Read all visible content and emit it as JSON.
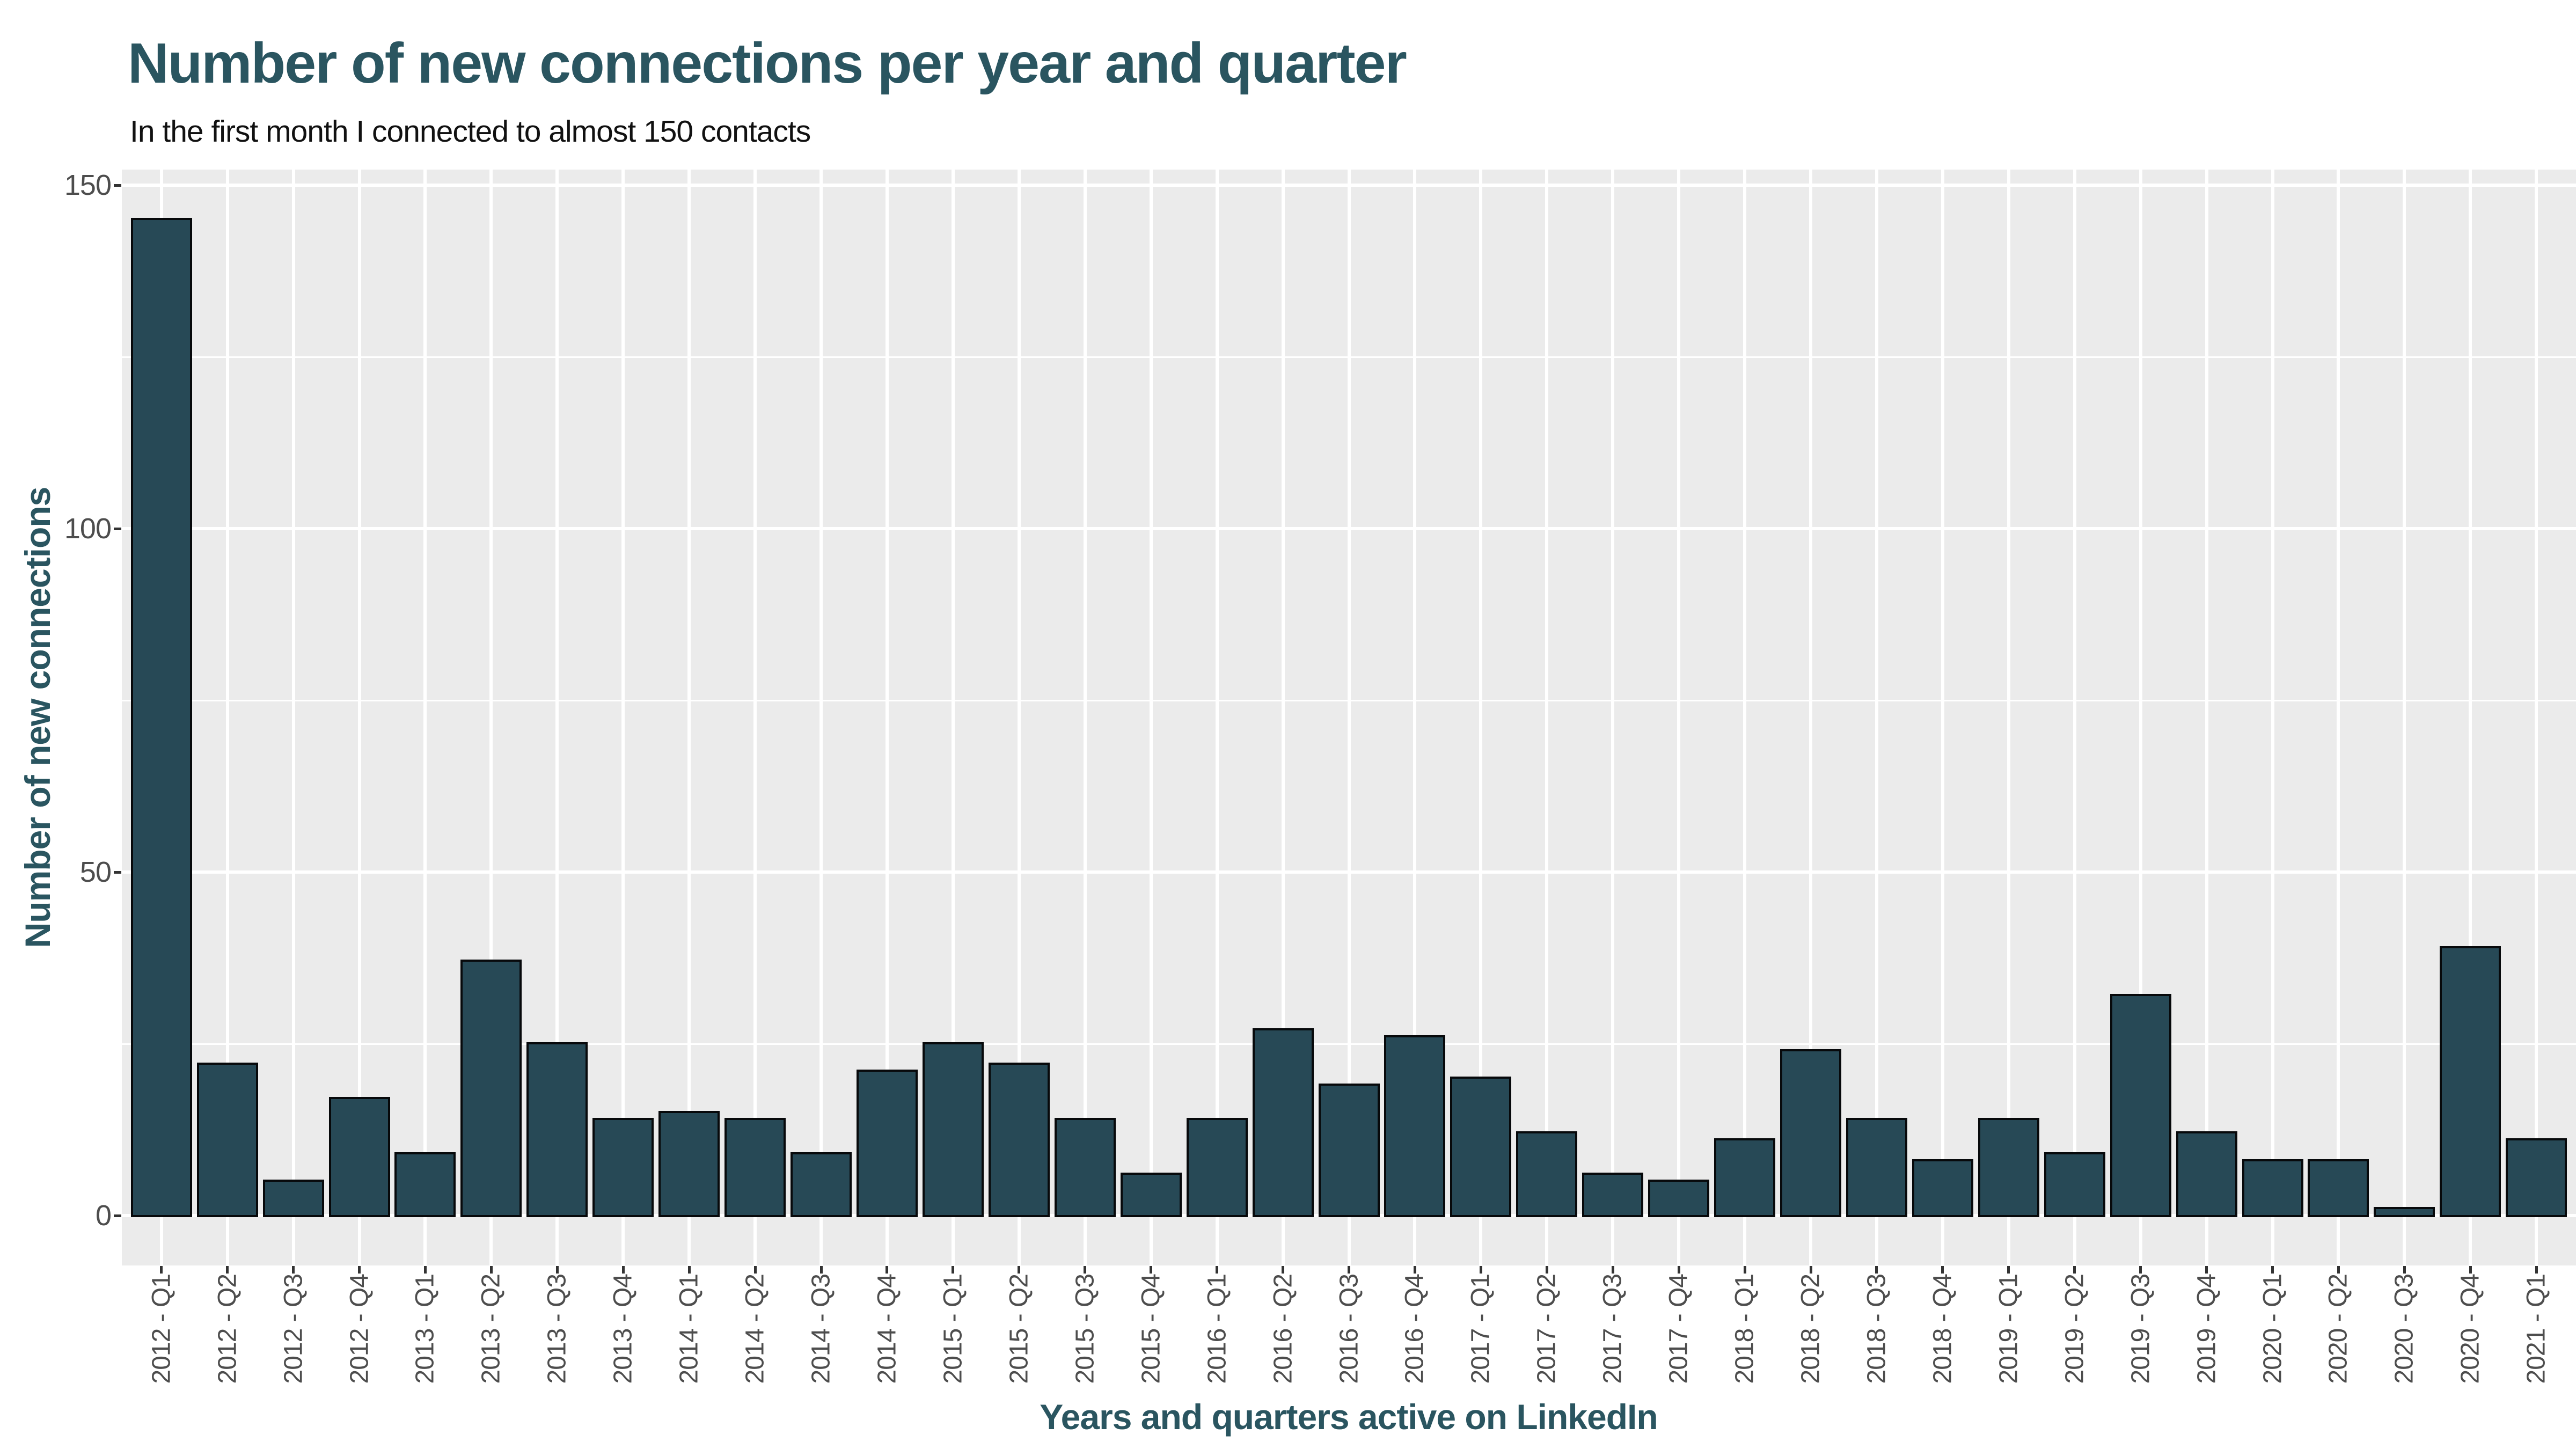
{
  "page": {
    "background": "#ffffff"
  },
  "chart_data": {
    "type": "bar",
    "title": "Number of new connections per year and quarter",
    "subtitle": "In the first month I connected to almost 150 contacts",
    "xlabel": "Years and quarters active on LinkedIn",
    "ylabel": "Number of new connections",
    "categories": [
      "2012 - Q1",
      "2012 - Q2",
      "2012 - Q3",
      "2012 - Q4",
      "2013 - Q1",
      "2013 - Q2",
      "2013 - Q3",
      "2013 - Q4",
      "2014 - Q1",
      "2014 - Q2",
      "2014 - Q3",
      "2014 - Q4",
      "2015 - Q1",
      "2015 - Q2",
      "2015 - Q3",
      "2015 - Q4",
      "2016 - Q1",
      "2016 - Q2",
      "2016 - Q3",
      "2016 - Q4",
      "2017 - Q1",
      "2017 - Q2",
      "2017 - Q3",
      "2017 - Q4",
      "2018 - Q1",
      "2018 - Q2",
      "2018 - Q3",
      "2018 - Q4",
      "2019 - Q1",
      "2019 - Q2",
      "2019 - Q3",
      "2019 - Q4",
      "2020 - Q1",
      "2020 - Q2",
      "2020 - Q3",
      "2020 - Q4",
      "2021 - Q1"
    ],
    "values": [
      145,
      22,
      5,
      17,
      9,
      37,
      25,
      14,
      15,
      14,
      9,
      21,
      25,
      22,
      14,
      6,
      14,
      27,
      19,
      26,
      20,
      12,
      6,
      5,
      11,
      24,
      14,
      8,
      14,
      9,
      32,
      12,
      8,
      8,
      1,
      39,
      11
    ],
    "y_ticks": [
      0,
      50,
      100,
      150
    ],
    "y_minor_gridlines": [
      25,
      75,
      125
    ],
    "ylim": [
      -7.25,
      152.25
    ],
    "grid": "on",
    "legend": "none",
    "bar_fill": "#274956",
    "bar_outline": "#07090b",
    "panel_background": "#ebebeb",
    "gridline_color": "#ffffff",
    "accent_color": "#2a5560",
    "tick_label_color": "#4d4d4d"
  }
}
